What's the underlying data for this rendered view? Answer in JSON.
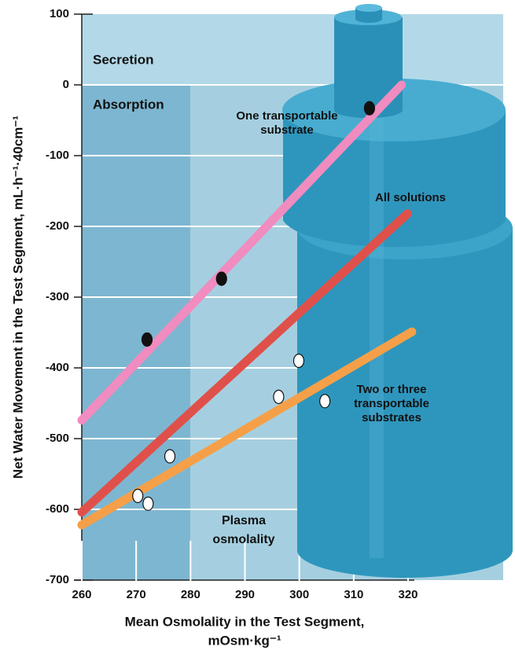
{
  "chart_data": {
    "type": "line",
    "x_label": [
      "Mean Osmolality in the Test Segment,",
      "mOsm·kg⁻¹"
    ],
    "y_label": "Net Water Movement in the Test Segment, mL·h⁻¹·40cm⁻¹",
    "xlim": [
      260,
      320
    ],
    "xticks": [
      260,
      270,
      280,
      290,
      300,
      310,
      320
    ],
    "ylim": [
      -700,
      100
    ],
    "yticks": [
      100,
      0,
      -100,
      -200,
      -300,
      -400,
      -500,
      -600,
      -700
    ],
    "regions": [
      {
        "label": "Secretion"
      },
      {
        "label": "Absorption"
      }
    ],
    "reference_x": {
      "value": 280,
      "label": [
        "Plasma",
        "osmolality"
      ]
    },
    "series": [
      {
        "name": [
          "One transportable",
          "substrate"
        ],
        "color": "#f08cbf",
        "x": [
          260,
          318.8
        ],
        "values": [
          -474,
          0
        ],
        "points": {
          "color": "#111111",
          "x": [
            272,
            285.7,
            312.9
          ],
          "values": [
            -360,
            -274,
            -33
          ]
        }
      },
      {
        "name": [
          "All solutions"
        ],
        "color": "#e0504a",
        "x": [
          260,
          319.9
        ],
        "values": [
          -604,
          -182
        ]
      },
      {
        "name": [
          "Two or three",
          "transportable",
          "substrates"
        ],
        "color": "#f5a048",
        "x": [
          260,
          320.7
        ],
        "values": [
          -622,
          -349
        ],
        "points": {
          "color": "#ffffff",
          "x": [
            270.3,
            272.2,
            276.2,
            296.2,
            299.9,
            304.7
          ],
          "values": [
            -581,
            -592,
            -525,
            -441,
            -390,
            -447
          ]
        }
      }
    ]
  }
}
